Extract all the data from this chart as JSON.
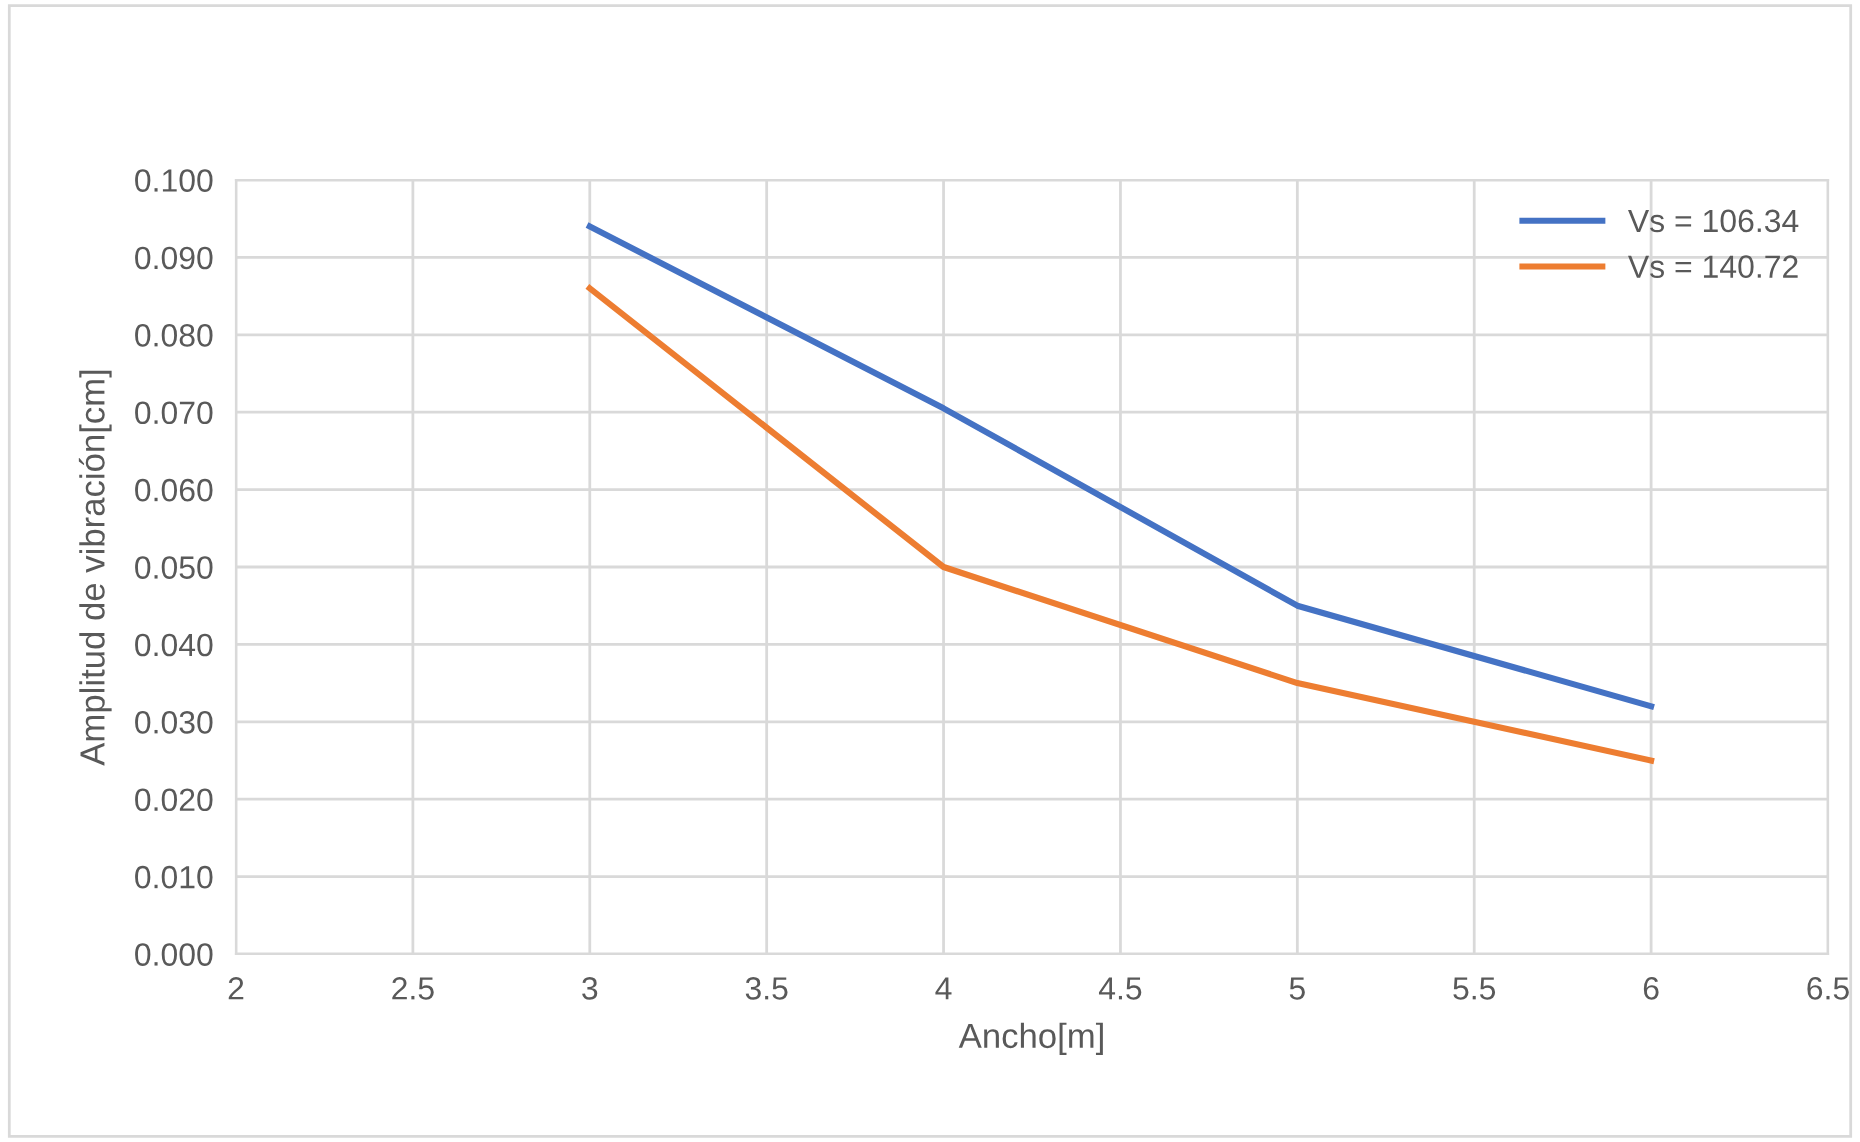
{
  "chart_data": {
    "type": "line",
    "xlabel": "Ancho[m]",
    "ylabel": "Amplitud de vibración[cm]",
    "xlim": [
      2,
      6.5
    ],
    "xticks": [
      2,
      2.5,
      3,
      3.5,
      4,
      4.5,
      5,
      5.5,
      6,
      6.5
    ],
    "ylim": [
      0,
      0.1
    ],
    "yticks": [
      {
        "value": 0,
        "label": "0.000"
      },
      {
        "value": 0.01,
        "label": "0.010"
      },
      {
        "value": 0.02,
        "label": "0.020"
      },
      {
        "value": 0.03,
        "label": "0.030"
      },
      {
        "value": 0.04,
        "label": "0.040"
      },
      {
        "value": 0.05,
        "label": "0.050"
      },
      {
        "value": 0.06,
        "label": "0.060"
      },
      {
        "value": 0.07,
        "label": "0.070"
      },
      {
        "value": 0.08,
        "label": "0.080"
      },
      {
        "value": 0.09,
        "label": "0.090"
      },
      {
        "value": 0.1,
        "label": "0.100"
      }
    ],
    "x": [
      3,
      4,
      5,
      6
    ],
    "series": [
      {
        "name": "Vs = 106.34",
        "color": "#4472c4",
        "values": [
          0.094,
          0.0705,
          0.045,
          0.032
        ]
      },
      {
        "name": "Vs = 140.72",
        "color": "#ed7d31",
        "values": [
          0.086,
          0.05,
          0.035,
          0.025
        ]
      }
    ],
    "grid": true,
    "legend": "top right",
    "marker": "none",
    "line_style": "solid"
  }
}
